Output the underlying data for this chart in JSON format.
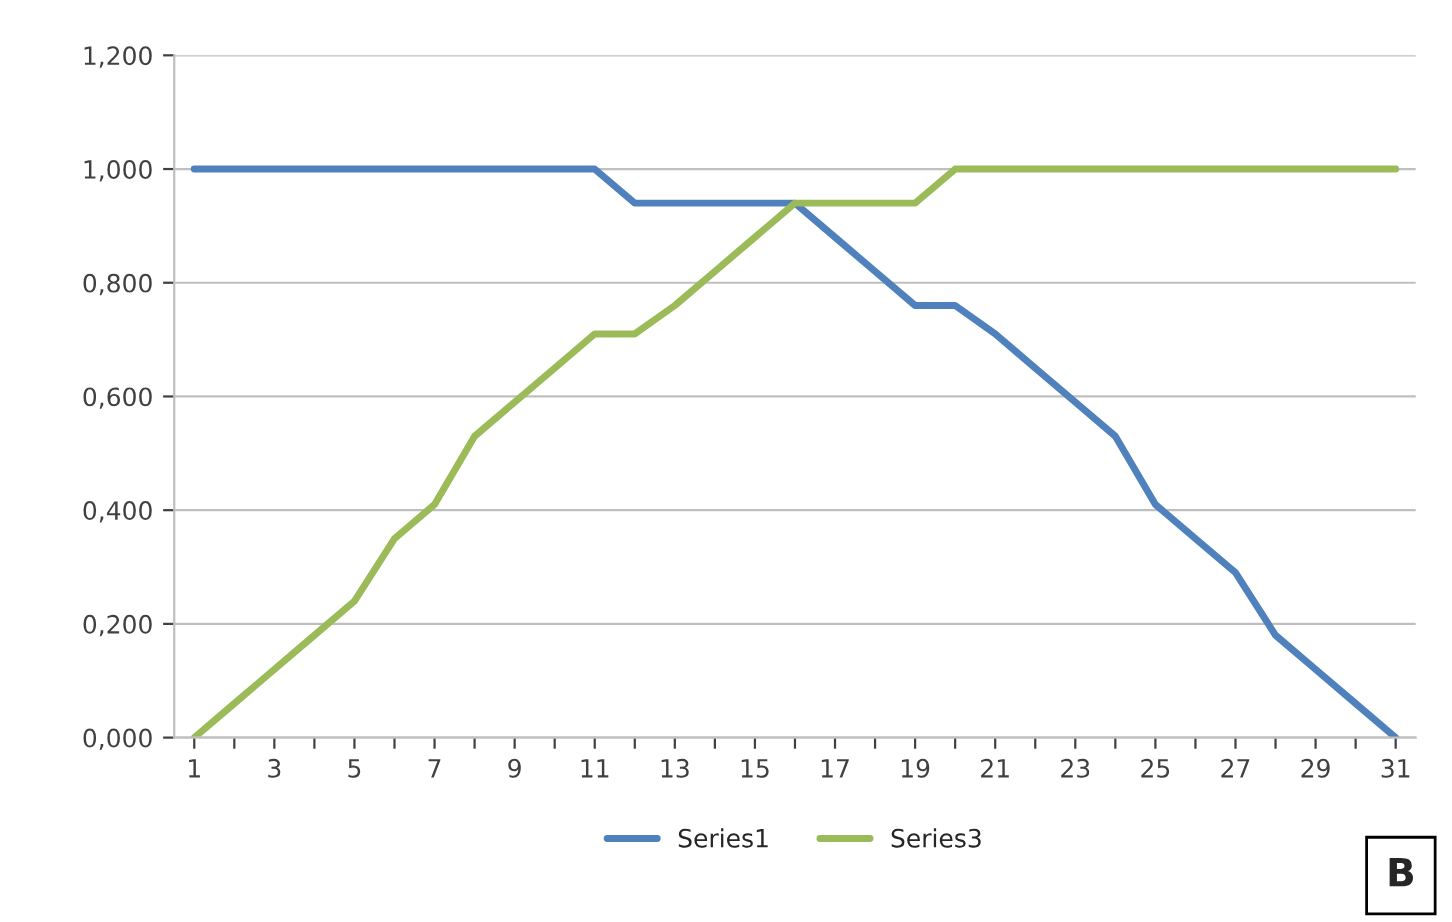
{
  "chart_data": {
    "type": "line",
    "categories": [
      "1",
      null,
      "3",
      null,
      "5",
      null,
      "7",
      null,
      "9",
      null,
      "11",
      null,
      "13",
      null,
      "15",
      null,
      "17",
      null,
      "19",
      null,
      "21",
      null,
      "23",
      null,
      "25",
      null,
      "27",
      null,
      "29",
      null,
      "31"
    ],
    "series": [
      {
        "name": "Series1",
        "color": "#4f81bd",
        "values": [
          1.0,
          1.0,
          1.0,
          1.0,
          1.0,
          1.0,
          1.0,
          1.0,
          1.0,
          1.0,
          1.0,
          0.94,
          0.94,
          0.94,
          0.94,
          0.94,
          0.88,
          0.82,
          0.76,
          0.76,
          0.71,
          0.65,
          0.59,
          0.53,
          0.41,
          0.35,
          0.29,
          0.18,
          0.12,
          0.06,
          0.0
        ]
      },
      {
        "name": "Series3",
        "color": "#9bbb59",
        "values": [
          0.0,
          0.06,
          0.12,
          0.18,
          0.24,
          0.35,
          0.41,
          0.53,
          0.59,
          0.65,
          0.71,
          0.71,
          0.76,
          0.82,
          0.88,
          0.94,
          0.94,
          0.94,
          0.94,
          1.0,
          1.0,
          1.0,
          1.0,
          1.0,
          1.0,
          1.0,
          1.0,
          1.0,
          1.0,
          1.0,
          1.0
        ]
      }
    ],
    "ylim": [
      0,
      1.2
    ],
    "yticks": [
      {
        "value": 0,
        "label": "0,000"
      },
      {
        "value": 0.2,
        "label": "0,200"
      },
      {
        "value": 0.4,
        "label": "0,400"
      },
      {
        "value": 0.6,
        "label": "0,600"
      },
      {
        "value": 0.8,
        "label": "0,800"
      },
      {
        "value": 1.0,
        "label": "1,000"
      },
      {
        "value": 1.2,
        "label": "1,200"
      }
    ],
    "grid": "y",
    "legend": "bottom",
    "marker": "none",
    "line_style": "solid",
    "annotations": [
      "B"
    ]
  }
}
